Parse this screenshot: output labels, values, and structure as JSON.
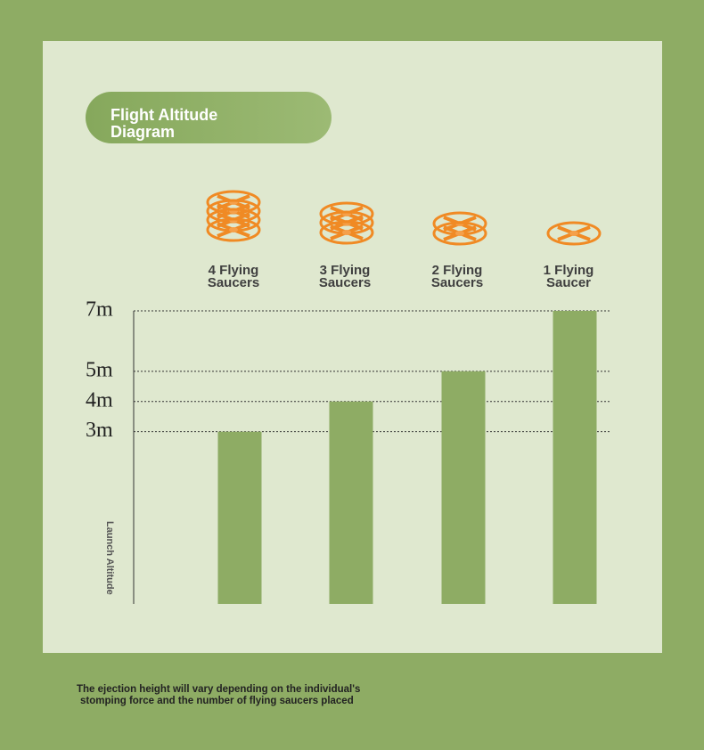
{
  "chart_data": {
    "type": "bar",
    "title": "Flight Altitude Diagram",
    "categories": [
      "4 Flying Saucers",
      "3 Flying Saucers",
      "2 Flying Saucers",
      "1 Flying Saucer"
    ],
    "values": [
      3,
      4,
      5,
      7
    ],
    "color": "#8eac64",
    "ylabel": "Launch Altitude",
    "ylim": [
      -2.7,
      7
    ],
    "yticks": [
      {
        "value": 3,
        "label": "3m"
      },
      {
        "value": 4,
        "label": "4m"
      },
      {
        "value": 5,
        "label": "5m"
      },
      {
        "value": 7,
        "label": "7m"
      }
    ],
    "grid": true,
    "annotations": [
      "The ejection height will vary depending on the individual's",
      "stomping force and the number of flying saucers placed"
    ]
  }
}
